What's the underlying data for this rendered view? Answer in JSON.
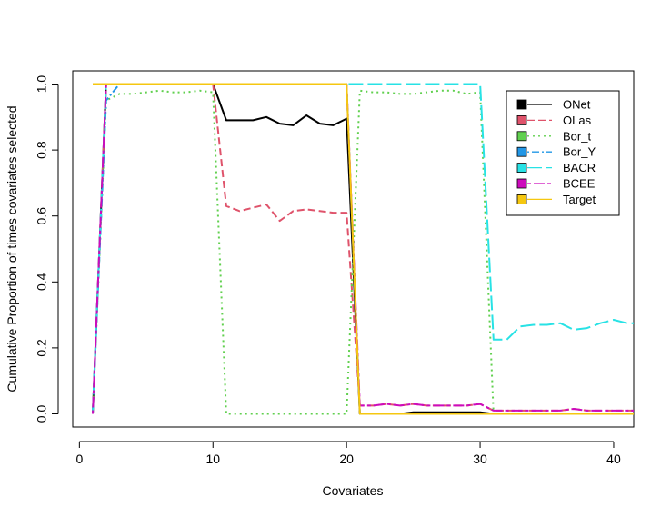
{
  "chart_data": {
    "type": "line",
    "title": "",
    "xlabel": "Covariates",
    "ylabel": "Cumulative Proportion of times covariates selected",
    "xlim": [
      -0.5,
      41.5
    ],
    "ylim": [
      -0.04,
      1.04
    ],
    "x_ticks": [
      0,
      10,
      20,
      30,
      40
    ],
    "y_ticks": [
      0.0,
      0.2,
      0.4,
      0.6,
      0.8,
      1.0
    ],
    "x_tick_labels": [
      "0",
      "10",
      "20",
      "30",
      "40"
    ],
    "y_tick_labels": [
      "0.0",
      "0.2",
      "0.4",
      "0.6",
      "0.8",
      "1.0"
    ],
    "grid": false,
    "legend_position": "top-right",
    "x": [
      1,
      2,
      3,
      4,
      5,
      6,
      7,
      8,
      9,
      10,
      11,
      12,
      13,
      14,
      15,
      16,
      17,
      18,
      19,
      20,
      21,
      22,
      23,
      24,
      25,
      26,
      27,
      28,
      29,
      30,
      31,
      32,
      33,
      34,
      35,
      36,
      37,
      38,
      39,
      40,
      41,
      42
    ],
    "series": [
      {
        "name": "ONet",
        "color": "#000000",
        "dash": "solid",
        "width": 2,
        "values": [
          0,
          1,
          1,
          1,
          1,
          1,
          1,
          1,
          1,
          1,
          0.89,
          0.89,
          0.89,
          0.9,
          0.88,
          0.875,
          0.905,
          0.88,
          0.875,
          0.895,
          0,
          0,
          0,
          0,
          0.005,
          0.005,
          0.005,
          0.005,
          0.005,
          0.005,
          0,
          0,
          0,
          0,
          0,
          0,
          0,
          0,
          0,
          0,
          0,
          0
        ]
      },
      {
        "name": "OLas",
        "color": "#DF536B",
        "dash": "dashed",
        "width": 2,
        "values": [
          0,
          1,
          1,
          1,
          1,
          1,
          1,
          1,
          1,
          1,
          0.63,
          0.615,
          0.625,
          0.635,
          0.585,
          0.615,
          0.62,
          0.615,
          0.61,
          0.61,
          0.025,
          0.025,
          0.03,
          0.025,
          0.03,
          0.025,
          0.025,
          0.025,
          0.025,
          0.03,
          0.01,
          0.01,
          0.01,
          0.01,
          0.01,
          0.01,
          0.015,
          0.01,
          0.01,
          0.01,
          0.01,
          0.01
        ]
      },
      {
        "name": "Bor_t",
        "color": "#61D04F",
        "dash": "dotted",
        "width": 2,
        "values": [
          0,
          0.95,
          0.97,
          0.97,
          0.975,
          0.98,
          0.975,
          0.975,
          0.98,
          0.975,
          0,
          0,
          0,
          0,
          0,
          0,
          0,
          0,
          0,
          0,
          0.98,
          0.975,
          0.975,
          0.97,
          0.97,
          0.975,
          0.98,
          0.98,
          0.97,
          0.975,
          0,
          0,
          0,
          0,
          0,
          0,
          0,
          0,
          0,
          0,
          0,
          0
        ]
      },
      {
        "name": "Bor_Y",
        "color": "#2297E6",
        "dash": "dashdot",
        "width": 2,
        "values": [
          0,
          0.95,
          1,
          1,
          1,
          1,
          1,
          1,
          1,
          1,
          1,
          1,
          1,
          1,
          1,
          1,
          1,
          1,
          1,
          1,
          0,
          0,
          0,
          0,
          0,
          0,
          0,
          0,
          0,
          0,
          0,
          0,
          0,
          0,
          0,
          0,
          0,
          0,
          0,
          0,
          0,
          0
        ]
      },
      {
        "name": "BACR",
        "color": "#28E2E5",
        "dash": "longdash",
        "width": 2,
        "values": [
          0,
          1,
          1,
          1,
          1,
          1,
          1,
          1,
          1,
          1,
          1,
          1,
          1,
          1,
          1,
          1,
          1,
          1,
          1,
          1,
          1,
          1,
          1,
          1,
          1,
          1,
          1,
          1,
          1,
          1,
          0.225,
          0.225,
          0.265,
          0.27,
          0.27,
          0.275,
          0.255,
          0.26,
          0.275,
          0.285,
          0.275,
          0.275
        ]
      },
      {
        "name": "BCEE",
        "color": "#CD0BBC",
        "dash": "twodash",
        "width": 2,
        "values": [
          0,
          1,
          1,
          1,
          1,
          1,
          1,
          1,
          1,
          1,
          1,
          1,
          1,
          1,
          1,
          1,
          1,
          1,
          1,
          1,
          0.025,
          0.025,
          0.03,
          0.025,
          0.03,
          0.025,
          0.025,
          0.025,
          0.025,
          0.03,
          0.01,
          0.01,
          0.01,
          0.01,
          0.01,
          0.01,
          0.015,
          0.01,
          0.01,
          0.01,
          0.01,
          0.01
        ]
      },
      {
        "name": "Target",
        "color": "#F5C710",
        "dash": "solid",
        "width": 2,
        "values": [
          1,
          1,
          1,
          1,
          1,
          1,
          1,
          1,
          1,
          1,
          1,
          1,
          1,
          1,
          1,
          1,
          1,
          1,
          1,
          1,
          0,
          0,
          0,
          0,
          0,
          0,
          0,
          0,
          0,
          0,
          0,
          0,
          0,
          0,
          0,
          0,
          0,
          0,
          0,
          0,
          0,
          0
        ]
      }
    ]
  }
}
